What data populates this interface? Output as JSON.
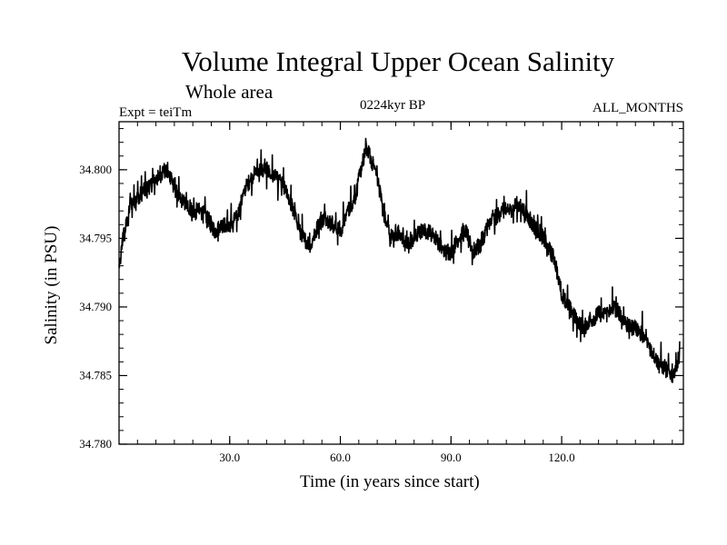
{
  "chart_data": {
    "type": "line",
    "title": "Volume Integral Upper Ocean Salinity",
    "subtitle": "Whole area",
    "experiment_label": "Expt = teiTm",
    "period_label": "0224kyr BP",
    "months_label": "ALL_MONTHS",
    "xlabel": "Time (in years since start)",
    "ylabel": "Salinity (in PSU)",
    "xlim": [
      0,
      153
    ],
    "ylim": [
      34.78,
      34.8035
    ],
    "xticks": [
      30,
      60,
      90,
      120
    ],
    "xtick_labels": [
      "30.0",
      "60.0",
      "90.0",
      "120.0"
    ],
    "yticks": [
      34.78,
      34.785,
      34.79,
      34.795,
      34.8
    ],
    "ytick_labels": [
      "34.780",
      "34.785",
      "34.790",
      "34.795",
      "34.800"
    ],
    "series": [
      {
        "name": "Salinity",
        "color": "#000000",
        "x": [
          0,
          1,
          2,
          3,
          5,
          7,
          9,
          11,
          12,
          14,
          16,
          18,
          20,
          22,
          24,
          26,
          28,
          30,
          32,
          34,
          36,
          38,
          40,
          42,
          44,
          46,
          48,
          50,
          52,
          54,
          56,
          58,
          60,
          62,
          64,
          66,
          67,
          68,
          70,
          72,
          74,
          76,
          78,
          80,
          82,
          84,
          86,
          88,
          90,
          92,
          94,
          96,
          98,
          100,
          102,
          104,
          106,
          108,
          110,
          112,
          114,
          116,
          118,
          120,
          122,
          124,
          126,
          128,
          130,
          132,
          134,
          136,
          138,
          140,
          142,
          144,
          146,
          148,
          150,
          152
        ],
        "values": [
          34.7925,
          34.795,
          34.796,
          34.7975,
          34.798,
          34.7985,
          34.799,
          34.7995,
          34.8,
          34.7995,
          34.798,
          34.7975,
          34.797,
          34.797,
          34.7965,
          34.7955,
          34.796,
          34.796,
          34.7965,
          34.7985,
          34.7995,
          34.8,
          34.8,
          34.7995,
          34.799,
          34.798,
          34.7965,
          34.795,
          34.7945,
          34.796,
          34.7965,
          34.796,
          34.7955,
          34.797,
          34.798,
          34.8005,
          34.8015,
          34.801,
          34.7995,
          34.7965,
          34.795,
          34.7955,
          34.7945,
          34.795,
          34.7955,
          34.7955,
          34.795,
          34.794,
          34.794,
          34.795,
          34.7955,
          34.794,
          34.7945,
          34.796,
          34.7965,
          34.797,
          34.797,
          34.7975,
          34.797,
          34.796,
          34.7955,
          34.7945,
          34.7935,
          34.791,
          34.79,
          34.789,
          34.7885,
          34.789,
          34.7895,
          34.7895,
          34.79,
          34.7895,
          34.7885,
          34.7885,
          34.788,
          34.787,
          34.786,
          34.7855,
          34.785,
          34.7865
        ]
      }
    ]
  }
}
